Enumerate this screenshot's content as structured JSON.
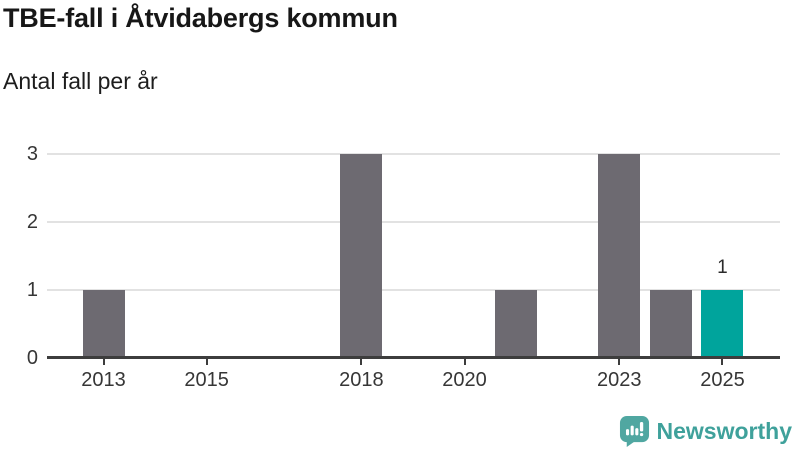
{
  "header": {
    "title": "TBE-fall i Åtvidabergs kommun",
    "subtitle": "Antal fall per år"
  },
  "chart_data": {
    "type": "bar",
    "title": "TBE-fall i Åtvidabergs kommun",
    "subtitle": "Antal fall per år",
    "categories": [
      "2013",
      "2014",
      "2015",
      "2016",
      "2017",
      "2018",
      "2019",
      "2020",
      "2021",
      "2022",
      "2023",
      "2024",
      "2025"
    ],
    "values": [
      1,
      0,
      0,
      0,
      0,
      3,
      0,
      0,
      1,
      0,
      3,
      1,
      1
    ],
    "highlight_category": "2025",
    "data_labels": [
      {
        "category": "2025",
        "label": "1"
      }
    ],
    "x_tick_labels": [
      "2013",
      "2015",
      "2018",
      "2020",
      "2023",
      "2025"
    ],
    "y_ticks": [
      "0",
      "1",
      "2",
      "3"
    ],
    "ylim": [
      0,
      3
    ],
    "grid": "horizontal",
    "legend": "none",
    "colors": {
      "bar": "#6d6a71",
      "highlight": "#00a49c",
      "gridline": "#e2e2e2",
      "axis": "#3d3d3d",
      "tick_label": "#363636"
    }
  },
  "footer": {
    "brand": "Newsworthy",
    "brand_color": "#3fa19b",
    "logo_icon_color": "#50a7a1",
    "logo_icon": "bar-chart-speech-bubble-icon"
  }
}
